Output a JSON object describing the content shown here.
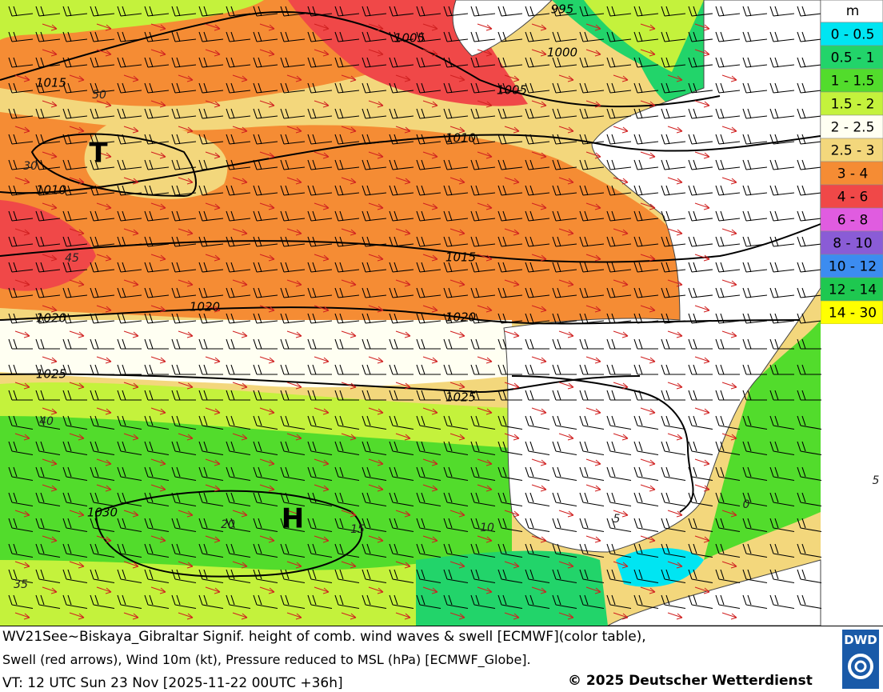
{
  "legend": {
    "unit": "m",
    "entries": [
      {
        "label": "0 - 0.5",
        "color": "#00e5f2"
      },
      {
        "label": "0.5 - 1",
        "color": "#22d46a"
      },
      {
        "label": "1 - 1.5",
        "color": "#52dc2c"
      },
      {
        "label": "1.5 - 2",
        "color": "#c4f23c"
      },
      {
        "label": "2 - 2.5",
        "color": "#fffff2"
      },
      {
        "label": "2.5 - 3",
        "color": "#f3d77c"
      },
      {
        "label": "3 - 4",
        "color": "#f58c34"
      },
      {
        "label": "4 - 6",
        "color": "#f04848"
      },
      {
        "label": "6 - 8",
        "color": "#e05ce0"
      },
      {
        "label": "8 - 10",
        "color": "#8a5cd6"
      },
      {
        "label": "10 - 12",
        "color": "#3c8cf0"
      },
      {
        "label": "12 - 14",
        "color": "#1ec850"
      },
      {
        "label": "14 - 30",
        "color": "#ffff00"
      }
    ]
  },
  "isobar_labels": [
    "995",
    "1000",
    "1005",
    "1005",
    "1010",
    "1010",
    "1015",
    "1015",
    "1020",
    "1020",
    "1020",
    "1025",
    "1025",
    "1030"
  ],
  "grid_labels": [
    "50",
    "30",
    "45",
    "40",
    "35",
    "20",
    "15",
    "10",
    "5",
    "0",
    "5"
  ],
  "pressure_centers": [
    "T",
    "H"
  ],
  "footer": {
    "line1": "WV21See~Biskaya_Gibraltar Signif. height of comb. wind waves & swell [ECMWF](color table),",
    "line2": "Swell (red arrows), Wind 10m (kt), Pressure reduced to MSL (hPa) [ECMWF_Globe].",
    "valid_time": "VT: 12 UTC Sun  23 Nov [2025-11-22 00UTC +36h]",
    "copyright": "© 2025 Deutscher Wetterdienst",
    "logo": "DWD"
  }
}
